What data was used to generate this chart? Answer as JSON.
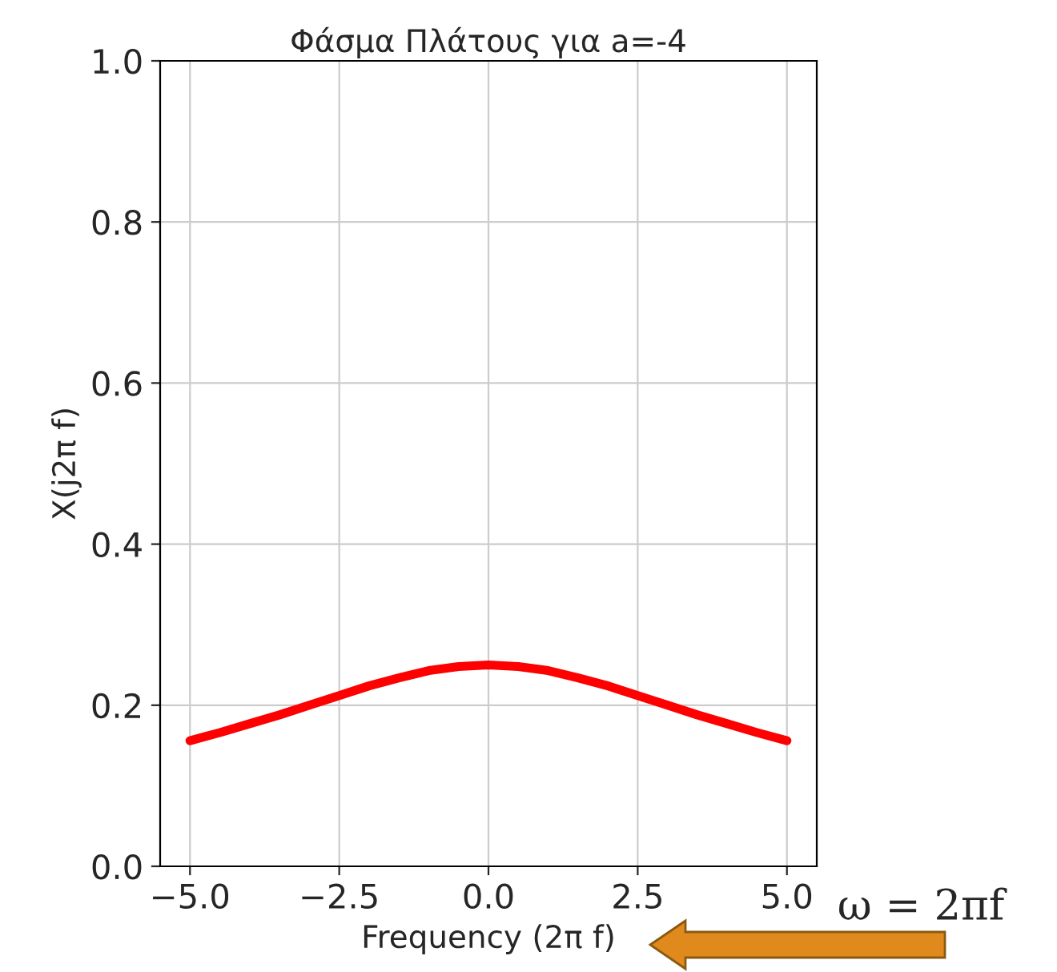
{
  "chart_data": {
    "type": "line",
    "title": "Φάσμα Πλάτους για a=-4",
    "xlabel": "Frequency (2π f)",
    "ylabel": "X(j2π f)",
    "x": [
      -5,
      -4.5,
      -4,
      -3.5,
      -3,
      -2.5,
      -2,
      -1.5,
      -1,
      -0.5,
      0,
      0.5,
      1,
      1.5,
      2,
      2.5,
      3,
      3.5,
      4,
      4.5,
      5
    ],
    "series": [
      {
        "color": "#ff0000",
        "values": [
          0.156,
          0.166,
          0.177,
          0.188,
          0.2,
          0.212,
          0.224,
          0.234,
          0.243,
          0.248,
          0.25,
          0.248,
          0.243,
          0.234,
          0.224,
          0.212,
          0.2,
          0.188,
          0.177,
          0.166,
          0.156
        ]
      }
    ],
    "xlim": [
      -5.5,
      5.5
    ],
    "ylim": [
      0,
      1
    ],
    "xticks": [
      {
        "value": -5,
        "label": "−5.0"
      },
      {
        "value": -2.5,
        "label": "−2.5"
      },
      {
        "value": 0,
        "label": "0.0"
      },
      {
        "value": 2.5,
        "label": "2.5"
      },
      {
        "value": 5,
        "label": "5.0"
      }
    ],
    "yticks": [
      {
        "value": 0,
        "label": "0.0"
      },
      0.2,
      0.4,
      0.6,
      0.8,
      {
        "value": 1,
        "label": "1.0"
      }
    ],
    "grid": true,
    "line_style": "solid",
    "annotations": [
      "ω = 2πf"
    ]
  }
}
